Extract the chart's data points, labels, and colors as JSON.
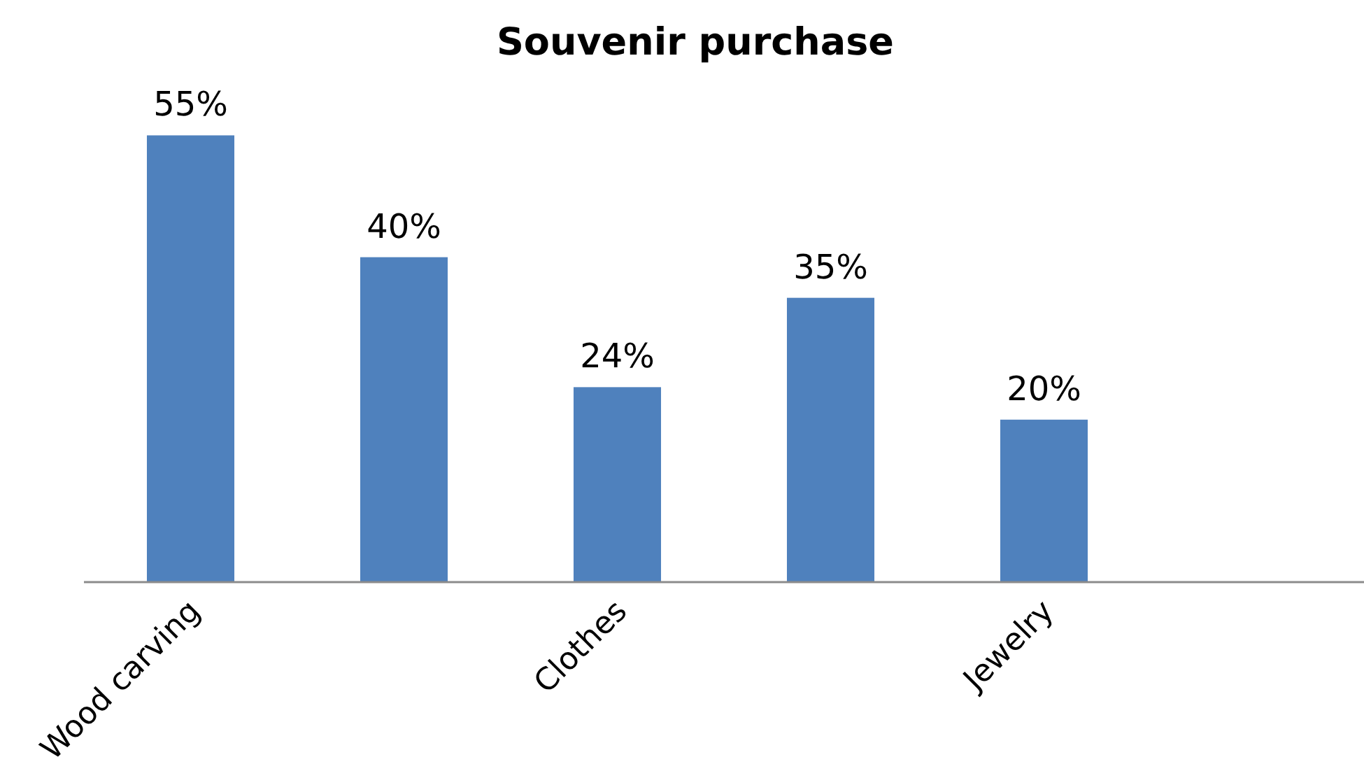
{
  "chart_data": {
    "type": "bar",
    "title": "Souvenir purchase",
    "categories": [
      "Wood carving",
      null,
      "Clothes",
      null,
      "Jewelry",
      null
    ],
    "values": [
      55,
      40,
      24,
      35,
      20,
      null
    ],
    "value_labels": [
      "55%",
      "40%",
      "24%",
      "35%",
      "20%",
      null
    ],
    "color": "#4f81bd"
  }
}
